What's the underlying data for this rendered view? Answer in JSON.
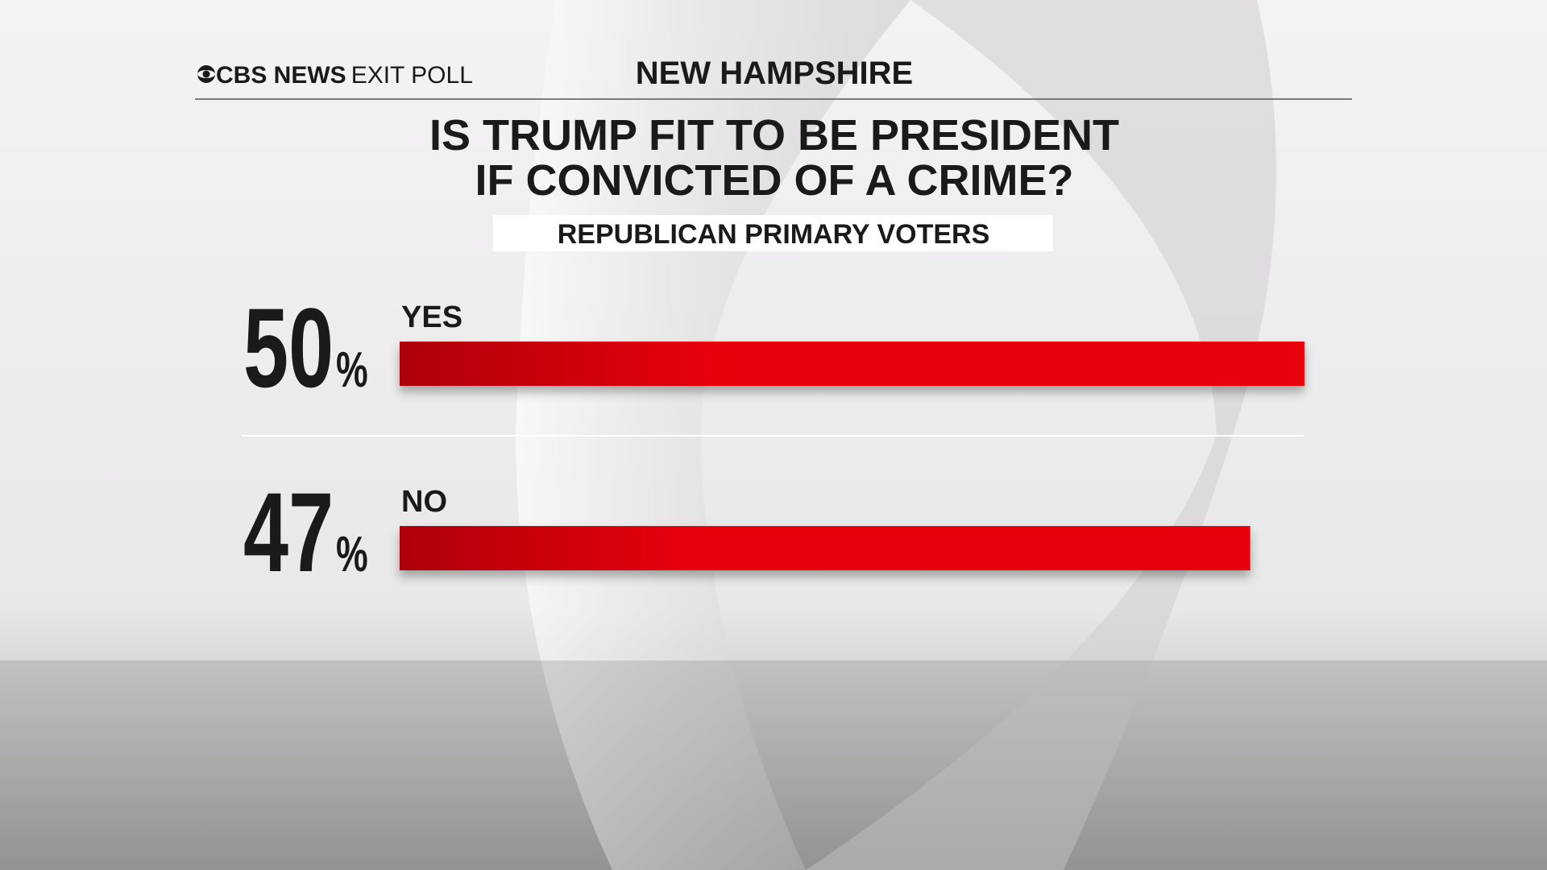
{
  "chart_data": {
    "type": "bar",
    "orientation": "horizontal",
    "brand": "CBS NEWS",
    "brand_suffix": "EXIT POLL",
    "heading": "NEW HAMPSHIRE",
    "title": [
      "IS TRUMP FIT TO BE PRESIDENT",
      "IF CONVICTED OF A CRIME?"
    ],
    "subtitle": "REPUBLICAN PRIMARY VOTERS",
    "categories": [
      "YES",
      "NO"
    ],
    "values": [
      50,
      47
    ],
    "value_labels": [
      "50%",
      "47%"
    ],
    "color": "#e8000d"
  }
}
